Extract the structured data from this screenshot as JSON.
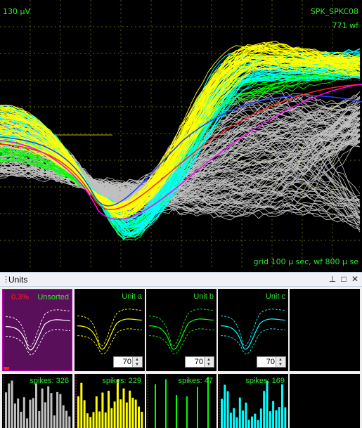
{
  "waveform": {
    "amplitude_label": "130 μV",
    "channel_name": "SPK_SPKC08",
    "waveform_count": "771 wf",
    "grid_label": "grid 100 μ sec, wf 800 μ se"
  },
  "units_panel": {
    "title": "Units",
    "buttons": {
      "pin": "pin-icon",
      "restore": "restore-icon",
      "close": "close-icon"
    }
  },
  "units": [
    {
      "name": "Unsorted",
      "percent": "0.3%",
      "spikes": "spikes: 326",
      "color": "#c0c0c0",
      "threshold": null
    },
    {
      "name": "Unit a",
      "percent": "",
      "spikes": "spikes: 229",
      "color": "#ffff00",
      "threshold": "70"
    },
    {
      "name": "Unit b",
      "percent": "",
      "spikes": "spikes: 47",
      "color": "#00ff00",
      "threshold": "70"
    },
    {
      "name": "Unit c",
      "percent": "",
      "spikes": "spikes: 169",
      "color": "#00ffff",
      "threshold": "70"
    }
  ],
  "colors": {
    "label_green": "#2ee82e",
    "unsorted_bg": "#5a0f5a",
    "unsorted_border": "#c000c0",
    "grid_dash": "#8a8a00",
    "mean_red": "#ff2020",
    "mean_blue": "#2040ff",
    "mean_magenta": "#ff00ff"
  }
}
